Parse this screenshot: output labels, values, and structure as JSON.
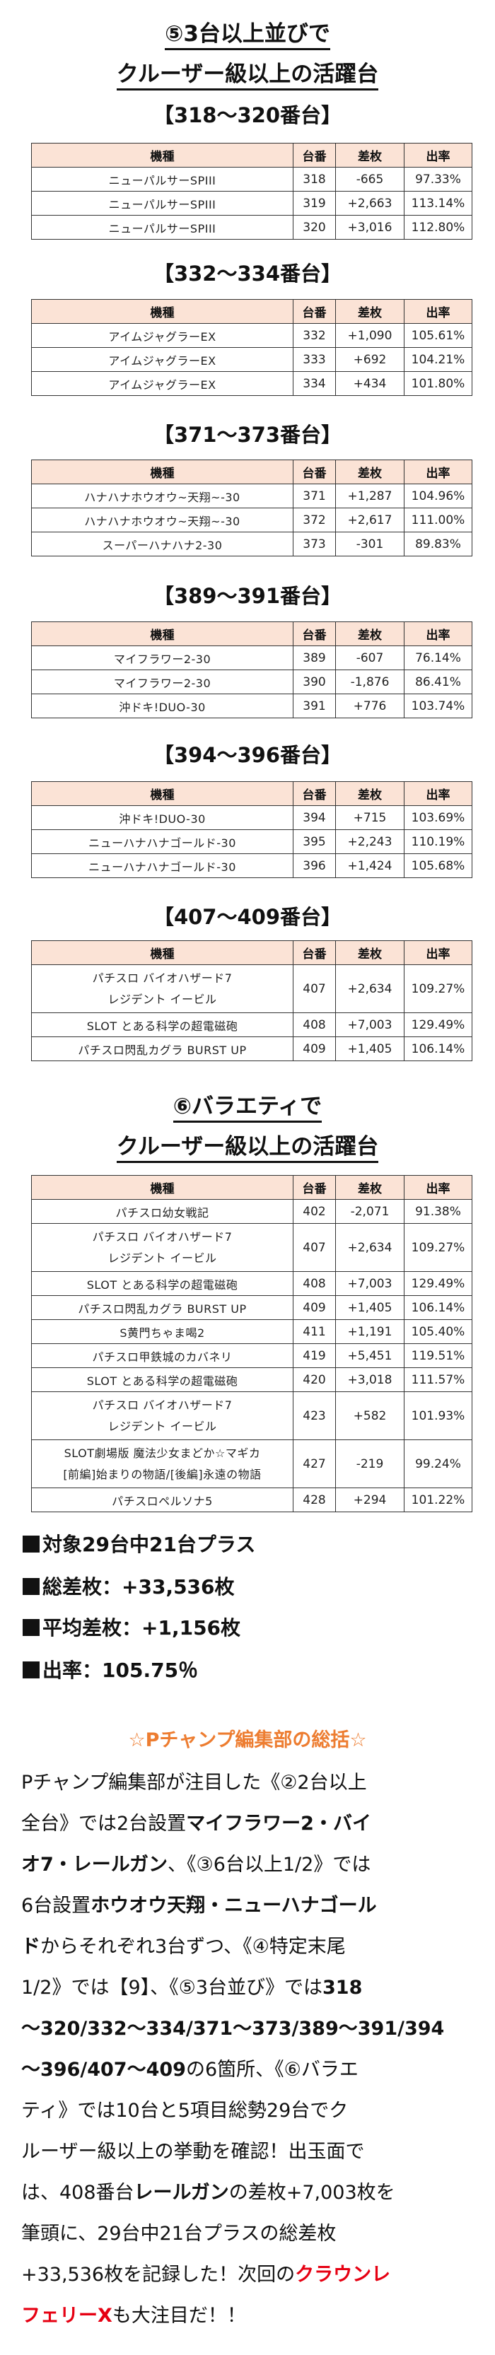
{
  "section5": {
    "title_line1": "⑤3台以上並びで",
    "title_line2": "クルーザー級以上の活躍台",
    "groups": [
      {
        "heading": "【318～320番台】",
        "rows": [
          {
            "model": "ニューパルサーSPIII",
            "unit": "318",
            "diff": "-665",
            "rate": "97.33%"
          },
          {
            "model": "ニューパルサーSPIII",
            "unit": "319",
            "diff": "+2,663",
            "rate": "113.14%"
          },
          {
            "model": "ニューパルサーSPIII",
            "unit": "320",
            "diff": "+3,016",
            "rate": "112.80%"
          }
        ]
      },
      {
        "heading": "【332～334番台】",
        "rows": [
          {
            "model": "アイムジャグラーEX",
            "unit": "332",
            "diff": "+1,090",
            "rate": "105.61%"
          },
          {
            "model": "アイムジャグラーEX",
            "unit": "333",
            "diff": "+692",
            "rate": "104.21%"
          },
          {
            "model": "アイムジャグラーEX",
            "unit": "334",
            "diff": "+434",
            "rate": "101.80%"
          }
        ]
      },
      {
        "heading": "【371～373番台】",
        "rows": [
          {
            "model": "ハナハナホウオウ~天翔~-30",
            "unit": "371",
            "diff": "+1,287",
            "rate": "104.96%"
          },
          {
            "model": "ハナハナホウオウ~天翔~-30",
            "unit": "372",
            "diff": "+2,617",
            "rate": "111.00%"
          },
          {
            "model": "スーパーハナハナ2-30",
            "unit": "373",
            "diff": "-301",
            "rate": "89.83%"
          }
        ]
      },
      {
        "heading": "【389～391番台】",
        "rows": [
          {
            "model": "マイフラワー2-30",
            "unit": "389",
            "diff": "-607",
            "rate": "76.14%"
          },
          {
            "model": "マイフラワー2-30",
            "unit": "390",
            "diff": "-1,876",
            "rate": "86.41%"
          },
          {
            "model": "沖ドキ!DUO-30",
            "unit": "391",
            "diff": "+776",
            "rate": "103.74%"
          }
        ]
      },
      {
        "heading": "【394～396番台】",
        "rows": [
          {
            "model": "沖ドキ!DUO-30",
            "unit": "394",
            "diff": "+715",
            "rate": "103.69%"
          },
          {
            "model": "ニューハナハナゴールド-30",
            "unit": "395",
            "diff": "+2,243",
            "rate": "110.19%"
          },
          {
            "model": "ニューハナハナゴールド-30",
            "unit": "396",
            "diff": "+1,424",
            "rate": "105.68%"
          }
        ]
      },
      {
        "heading": "【407～409番台】",
        "rows": [
          {
            "model": "パチスロ バイオハザード7",
            "model2": "レジデント イービル",
            "unit": "407",
            "diff": "+2,634",
            "rate": "109.27%"
          },
          {
            "model": "SLOT とある科学の超電磁砲",
            "unit": "408",
            "diff": "+7,003",
            "rate": "129.49%"
          },
          {
            "model": "パチスロ閃乱カグラ BURST UP",
            "unit": "409",
            "diff": "+1,405",
            "rate": "106.14%"
          }
        ]
      }
    ]
  },
  "section6": {
    "title_line1": "⑥バラエティで",
    "title_line2": "クルーザー級以上の活躍台",
    "rows": [
      {
        "model": "パチスロ幼女戦記",
        "unit": "402",
        "diff": "-2,071",
        "rate": "91.38%"
      },
      {
        "model": "パチスロ バイオハザード7",
        "model2": "レジデント イービル",
        "unit": "407",
        "diff": "+2,634",
        "rate": "109.27%"
      },
      {
        "model": "SLOT とある科学の超電磁砲",
        "unit": "408",
        "diff": "+7,003",
        "rate": "129.49%"
      },
      {
        "model": "パチスロ閃乱カグラ BURST UP",
        "unit": "409",
        "diff": "+1,405",
        "rate": "106.14%"
      },
      {
        "model": "S黄門ちゃま喝2",
        "unit": "411",
        "diff": "+1,191",
        "rate": "105.40%"
      },
      {
        "model": "パチスロ甲鉄城のカバネリ",
        "unit": "419",
        "diff": "+5,451",
        "rate": "119.51%"
      },
      {
        "model": "SLOT とある科学の超電磁砲",
        "unit": "420",
        "diff": "+3,018",
        "rate": "111.57%"
      },
      {
        "model": "パチスロ バイオハザード7",
        "model2": "レジデント イービル",
        "unit": "423",
        "diff": "+582",
        "rate": "101.93%"
      },
      {
        "model": "SLOT劇場版 魔法少女まどか☆マギカ",
        "model2": "[前編]始まりの物語/[後編]永遠の物語",
        "unit": "427",
        "diff": "-219",
        "rate": "99.24%"
      },
      {
        "model": "パチスロペルソナ5",
        "unit": "428",
        "diff": "+294",
        "rate": "101.22%"
      }
    ]
  },
  "table_headers": {
    "model": "機種",
    "unit": "台番",
    "diff": "差枚",
    "rate": "出率"
  },
  "stats": {
    "plus_count": "対象29台中21台プラス",
    "total_diff": "総差枚：+33,536枚",
    "avg_diff": "平均差枚：+1,156枚",
    "rate": "出率：105.75％"
  },
  "summary": {
    "heading": "☆Pチャンプ編集部の総括☆",
    "heading_color": "#ED7D31",
    "highlight_color": "#E60012",
    "lines": [
      [
        {
          "t": "Pチャンプ編集部が注目した《②2台以上"
        }
      ],
      [
        {
          "t": "全台》では2台設置"
        },
        {
          "t": "マイフラワー2・バイ",
          "b": true
        }
      ],
      [
        {
          "t": "オ7・レールガン",
          "b": true
        },
        {
          "t": "、《③6台以上1/2》では"
        }
      ],
      [
        {
          "t": "6台設置"
        },
        {
          "t": "ホウオウ天翔・ニューハナゴール",
          "b": true
        }
      ],
      [
        {
          "t": "ド",
          "b": true
        },
        {
          "t": "からそれぞれ3台ずつ、《④特定末尾"
        }
      ],
      [
        {
          "t": "1/2》では【9】、《⑤3台並び》では"
        },
        {
          "t": "318",
          "b": true
        }
      ],
      [
        {
          "t": "～320/332～334/371～373/389～391/394",
          "b": true
        }
      ],
      [
        {
          "t": "～396/407～409",
          "b": true
        },
        {
          "t": "の6箇所、《⑥バラエ"
        }
      ],
      [
        {
          "t": "ティ》では10台と5項目総勢29台でク"
        }
      ],
      [
        {
          "t": "ルーザー級以上の挙動を確認！出玉面で"
        }
      ],
      [
        {
          "t": "は、408番台"
        },
        {
          "t": "レールガン",
          "b": true
        },
        {
          "t": "の差枚+7,003枚を"
        }
      ],
      [
        {
          "t": "筆頭に、29台中21台プラスの総差枚"
        }
      ],
      [
        {
          "t": "+33,536枚を記録した！次回の"
        },
        {
          "t": "クラウンレ",
          "r": true
        }
      ],
      [
        {
          "t": "フェリーX",
          "r": true
        },
        {
          "t": "も大注目だ！！"
        }
      ]
    ]
  }
}
